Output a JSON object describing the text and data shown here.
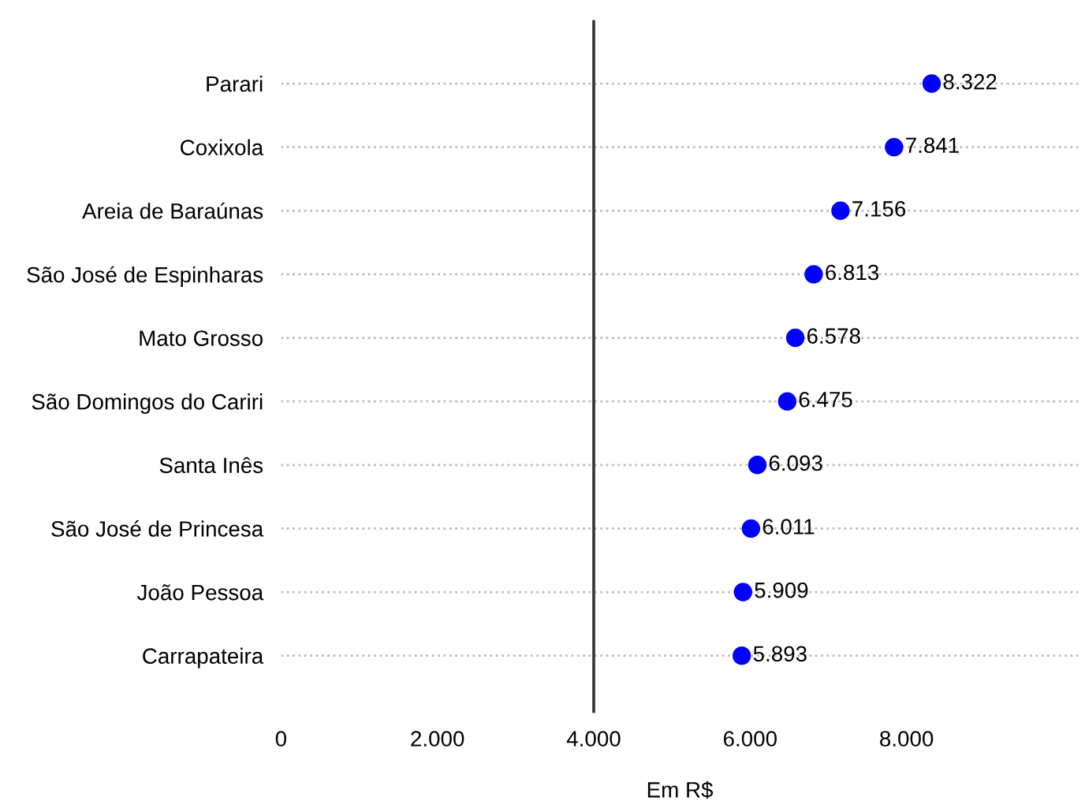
{
  "chart_data": {
    "type": "scatter",
    "orientation": "horizontal",
    "xlabel": "Em R$",
    "categories": [
      "Parari",
      "Coxixola",
      "Areia de Baraúnas",
      "São José de Espinharas",
      "Mato Grosso",
      "São Domingos do Cariri",
      "Santa Inês",
      "São José de Princesa",
      "João Pessoa",
      "Carrapateira"
    ],
    "series": [
      {
        "color": "#0000ff",
        "values": [
          8322,
          7841,
          7156,
          6813,
          6578,
          6475,
          6093,
          6011,
          5909,
          5893
        ],
        "value_labels": [
          "8.322",
          "7.841",
          "7.156",
          "6.813",
          "6.578",
          "6.475",
          "6.093",
          "6.011",
          "5.909",
          "5.893"
        ]
      }
    ],
    "xlim": [
      0,
      10200
    ],
    "xticks": [
      0,
      {
        "value": 2000,
        "label": "2.000"
      },
      {
        "value": 4000,
        "label": "4.000"
      },
      {
        "value": 6000,
        "label": "6.000"
      },
      {
        "value": 8000,
        "label": "8.000"
      }
    ],
    "ref_lines": [
      {
        "axis": "x",
        "value": 4000,
        "color": "#333333"
      }
    ],
    "grid": "y",
    "line_style": "dotted",
    "marker": "circle"
  }
}
